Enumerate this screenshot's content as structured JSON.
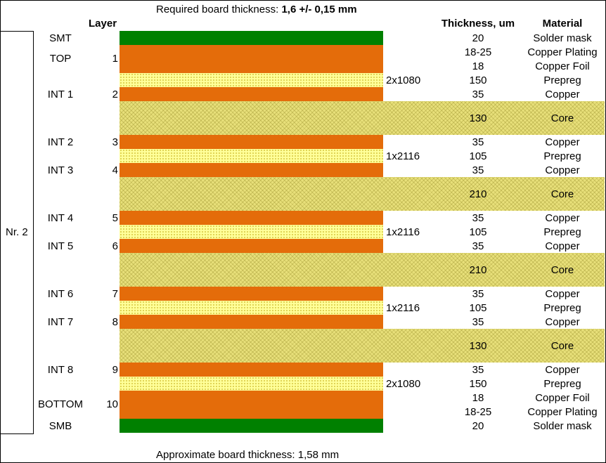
{
  "required_thickness": {
    "label": "Required board thickness: ",
    "value": "1,6 +/- 0,15 mm"
  },
  "headers": {
    "layer": "Layer",
    "thickness": "Thickness, um",
    "material": "Material"
  },
  "stack_name": "Nr. 2",
  "layers": [
    {
      "name": "SMT",
      "number": ""
    },
    {
      "name": "TOP",
      "number": "1"
    },
    {
      "name": "INT 1",
      "number": "2"
    },
    {
      "name": "INT 2",
      "number": "3"
    },
    {
      "name": "INT 3",
      "number": "4"
    },
    {
      "name": "INT 4",
      "number": "5"
    },
    {
      "name": "INT 5",
      "number": "6"
    },
    {
      "name": "INT 6",
      "number": "7"
    },
    {
      "name": "INT 7",
      "number": "8"
    },
    {
      "name": "INT 8",
      "number": "9"
    },
    {
      "name": "BOTTOM",
      "number": "10"
    },
    {
      "name": "SMB",
      "number": ""
    }
  ],
  "prepreg_types": [
    "2x1080",
    "1x2116",
    "1x2116",
    "1x2116",
    "2x1080"
  ],
  "rows": [
    {
      "thickness": "20",
      "material": "Solder mask"
    },
    {
      "thickness": "18-25",
      "material": "Copper Plating"
    },
    {
      "thickness": "18",
      "material": "Copper Foil"
    },
    {
      "thickness": "150",
      "material": "Prepreg"
    },
    {
      "thickness": "35",
      "material": "Copper"
    },
    {
      "thickness": "130",
      "material": "Core"
    },
    {
      "thickness": "35",
      "material": "Copper"
    },
    {
      "thickness": "105",
      "material": "Prepreg"
    },
    {
      "thickness": "35",
      "material": "Copper"
    },
    {
      "thickness": "210",
      "material": "Core"
    },
    {
      "thickness": "35",
      "material": "Copper"
    },
    {
      "thickness": "105",
      "material": "Prepreg"
    },
    {
      "thickness": "35",
      "material": "Copper"
    },
    {
      "thickness": "210",
      "material": "Core"
    },
    {
      "thickness": "35",
      "material": "Copper"
    },
    {
      "thickness": "105",
      "material": "Prepreg"
    },
    {
      "thickness": "35",
      "material": "Copper"
    },
    {
      "thickness": "130",
      "material": "Core"
    },
    {
      "thickness": "35",
      "material": "Copper"
    },
    {
      "thickness": "150",
      "material": "Prepreg"
    },
    {
      "thickness": "18",
      "material": "Copper Foil"
    },
    {
      "thickness": "18-25",
      "material": "Copper Plating"
    },
    {
      "thickness": "20",
      "material": "Solder mask"
    }
  ],
  "approx_thickness": "Approximate board thickness: 1,58 mm"
}
